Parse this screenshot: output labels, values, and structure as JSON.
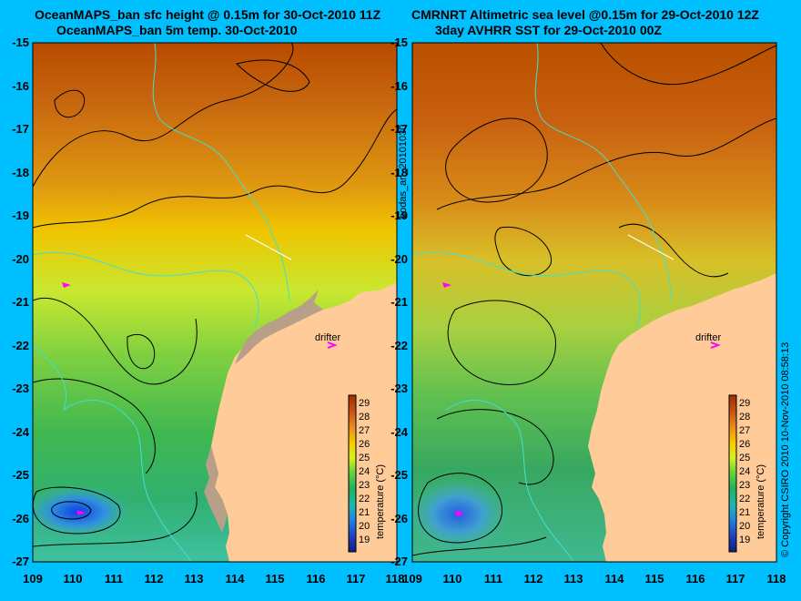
{
  "left_panel": {
    "title_line1": "OceanMAPS_ban sfc height @ 0.15m for 30-Oct-2010 11Z",
    "title_line2": "OceanMAPS_ban 5m temp. 30-Oct-2010"
  },
  "right_panel": {
    "title_line1": "CMRNRT Altimetric sea level  @0.15m  for 29-Oct-2010 12Z",
    "title_line2": "3day AVHRR SST for 29-Oct-2010 00Z"
  },
  "y_ticks": [
    "-15",
    "-16",
    "-17",
    "-18",
    "-19",
    "-20",
    "-21",
    "-22",
    "-23",
    "-24",
    "-25",
    "-26",
    "-27"
  ],
  "x_ticks": [
    "109",
    "110",
    "111",
    "112",
    "113",
    "114",
    "115",
    "116",
    "117",
    "118"
  ],
  "colorbar": {
    "label": "temperature (°C)",
    "ticks": [
      "29",
      "28",
      "27",
      "26",
      "25",
      "24",
      "23",
      "22",
      "21",
      "20",
      "19"
    ]
  },
  "annotations": {
    "drifter": "drifter",
    "side_label": "bodas_an_20101030",
    "copyright": "© Copyright CSIRO 2010   10-Nov-2010 08:58:13"
  },
  "colors": {
    "background": "#00bfff",
    "land": "#ffcc99",
    "contour": "#000000",
    "coastline_contour": "#40e0d0",
    "drifter_marker": "#ff00ff"
  },
  "map_extent": {
    "lon": [
      109,
      118
    ],
    "lat": [
      -27,
      -15
    ]
  }
}
